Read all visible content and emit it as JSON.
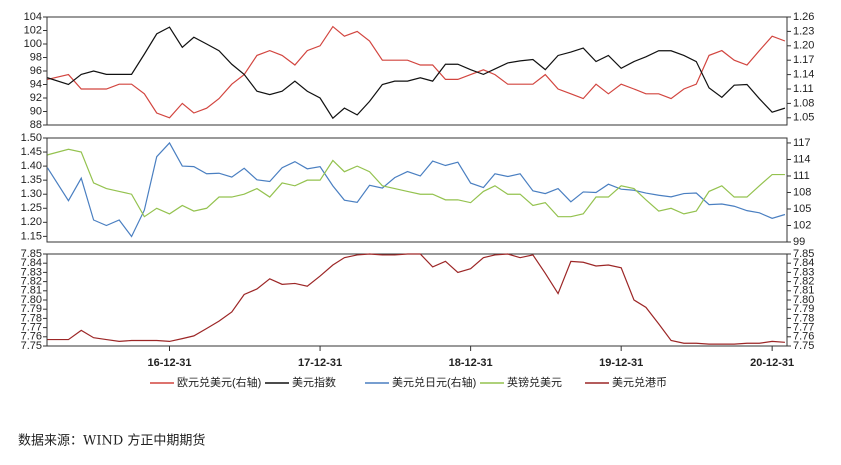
{
  "chart_data": [
    {
      "type": "line",
      "x": [
        "2016-03-10",
        "2016-04-30",
        "2016-05-31",
        "2016-06-30",
        "2016-07-31",
        "2016-08-31",
        "2016-09-30",
        "2016-10-31",
        "2016-11-30",
        "2016-12-31",
        "2017-01-31",
        "2017-02-28",
        "2017-03-31",
        "2017-04-30",
        "2017-05-31",
        "2017-06-30",
        "2017-07-31",
        "2017-08-31",
        "2017-09-30",
        "2017-10-31",
        "2017-11-30",
        "2017-12-31",
        "2018-01-31",
        "2018-02-28",
        "2018-03-31",
        "2018-04-30",
        "2018-05-31",
        "2018-06-30",
        "2018-07-31",
        "2018-08-31",
        "2018-09-30",
        "2018-10-31",
        "2018-11-30",
        "2018-12-31",
        "2019-01-31",
        "2019-02-28",
        "2019-03-31",
        "2019-04-30",
        "2019-05-31",
        "2019-06-30",
        "2019-07-31",
        "2019-08-31",
        "2019-09-30",
        "2019-10-31",
        "2019-11-30",
        "2019-12-31",
        "2020-01-31",
        "2020-02-29",
        "2020-03-31",
        "2020-04-30",
        "2020-05-31",
        "2020-06-30",
        "2020-07-31",
        "2020-08-31",
        "2020-09-30",
        "2020-10-31",
        "2020-11-30",
        "2020-12-31",
        "2021-01-31"
      ],
      "xlim": [
        "2016-03-09",
        "2021-02-05"
      ],
      "ylim": [
        88,
        104
      ],
      "yticks": [
        88,
        90,
        92,
        94,
        96,
        98,
        100,
        102,
        104
      ],
      "y2lim": [
        1.035,
        1.26
      ],
      "y2ticks": [
        1.05,
        1.08,
        1.11,
        1.14,
        1.17,
        {
          "value": 1.2,
          "label": "1.20"
        },
        1.23,
        1.26
      ],
      "series": [
        {
          "name": "欧元兑美元(右轴)",
          "color": "#d2453f",
          "axis": "y2",
          "values": [
            1.13,
            1.14,
            1.11,
            1.11,
            1.11,
            1.12,
            1.12,
            1.1,
            1.06,
            1.05,
            1.08,
            1.06,
            1.07,
            1.09,
            1.12,
            1.14,
            1.18,
            1.19,
            1.18,
            1.16,
            1.19,
            1.2,
            1.24,
            1.22,
            1.23,
            1.21,
            1.17,
            1.17,
            1.17,
            1.16,
            1.16,
            1.13,
            1.13,
            1.14,
            1.15,
            1.14,
            1.12,
            1.12,
            1.12,
            1.14,
            1.11,
            1.1,
            1.09,
            1.12,
            1.1,
            1.12,
            1.11,
            1.1,
            1.1,
            1.09,
            1.11,
            1.12,
            1.18,
            1.19,
            1.17,
            1.16,
            1.19,
            1.22,
            1.21
          ]
        },
        {
          "name": "美元指数",
          "color": "#111111",
          "values": [
            95,
            94,
            95.5,
            96,
            95.5,
            95.5,
            95.5,
            98.5,
            101.5,
            102.5,
            99.5,
            101,
            100,
            99,
            97,
            95.5,
            93,
            92.5,
            93,
            94.5,
            93,
            92,
            89,
            90.5,
            89.5,
            91.5,
            94,
            94.5,
            94.5,
            95,
            94.5,
            97,
            97,
            96.2,
            95.5,
            96.3,
            97.2,
            97.5,
            97.7,
            96.2,
            98.3,
            98.8,
            99.4,
            97.4,
            98.3,
            96.4,
            97.4,
            98.1,
            99,
            99,
            98.3,
            97.4,
            93.5,
            92.1,
            93.9,
            94,
            91.9,
            89.9,
            90.5
          ]
        }
      ]
    },
    {
      "type": "line",
      "x": [
        "2016-03-10",
        "2016-04-30",
        "2016-05-31",
        "2016-06-30",
        "2016-07-31",
        "2016-08-31",
        "2016-09-30",
        "2016-10-31",
        "2016-11-30",
        "2016-12-31",
        "2017-01-31",
        "2017-02-28",
        "2017-03-31",
        "2017-04-30",
        "2017-05-31",
        "2017-06-30",
        "2017-07-31",
        "2017-08-31",
        "2017-09-30",
        "2017-10-31",
        "2017-11-30",
        "2017-12-31",
        "2018-01-31",
        "2018-02-28",
        "2018-03-31",
        "2018-04-30",
        "2018-05-31",
        "2018-06-30",
        "2018-07-31",
        "2018-08-31",
        "2018-09-30",
        "2018-10-31",
        "2018-11-30",
        "2018-12-31",
        "2019-01-31",
        "2019-02-28",
        "2019-03-31",
        "2019-04-30",
        "2019-05-31",
        "2019-06-30",
        "2019-07-31",
        "2019-08-31",
        "2019-09-30",
        "2019-10-31",
        "2019-11-30",
        "2019-12-31",
        "2020-01-31",
        "2020-02-29",
        "2020-03-31",
        "2020-04-30",
        "2020-05-31",
        "2020-06-30",
        "2020-07-31",
        "2020-08-31",
        "2020-09-30",
        "2020-10-31",
        "2020-11-30",
        "2020-12-31",
        "2021-01-31"
      ],
      "xlim": [
        "2016-03-09",
        "2021-02-05"
      ],
      "ylim": [
        1.13,
        1.5
      ],
      "yticks": [
        1.15,
        {
          "value": 1.2,
          "label": "1.20"
        },
        1.25,
        {
          "value": 1.3,
          "label": "1.30"
        },
        1.35,
        {
          "value": 1.4,
          "label": "1.40"
        },
        1.45,
        {
          "value": 1.5,
          "label": "1.50"
        }
      ],
      "y2lim": [
        99,
        117.9
      ],
      "y2ticks": [
        99,
        102,
        105,
        108,
        111,
        114,
        117
      ],
      "series": [
        {
          "name": "美元兑日元(右轴)",
          "color": "#4a7fc1",
          "axis": "y2",
          "values": [
            112.5,
            106.5,
            110.6,
            103,
            102,
            103,
            100,
            104.8,
            114.5,
            117,
            112.8,
            112.7,
            111.4,
            111.5,
            110.8,
            112.4,
            110.3,
            110,
            112.5,
            113.6,
            112.3,
            112.7,
            109.2,
            106.6,
            106.2,
            109.3,
            108.8,
            110.7,
            111.8,
            111,
            113.7,
            112.9,
            113.5,
            109.7,
            108.9,
            111.4,
            110.9,
            111.4,
            108.3,
            107.8,
            108.7,
            106.3,
            108.1,
            108,
            109.5,
            108.6,
            108.4,
            107.9,
            107.5,
            107.2,
            107.8,
            107.9,
            105.8,
            105.9,
            105.5,
            104.7,
            104.3,
            103.3,
            104
          ]
        },
        {
          "name": "英镑兑美元",
          "color": "#94c24f",
          "values": [
            1.44,
            1.46,
            1.45,
            1.34,
            1.32,
            1.31,
            1.3,
            1.22,
            1.25,
            1.23,
            1.26,
            1.24,
            1.25,
            1.29,
            1.29,
            1.3,
            1.32,
            1.29,
            1.34,
            1.33,
            1.35,
            1.35,
            1.42,
            1.38,
            1.4,
            1.38,
            1.33,
            1.32,
            1.31,
            1.3,
            1.3,
            1.28,
            1.28,
            1.27,
            1.31,
            1.33,
            1.3,
            1.3,
            1.26,
            1.27,
            1.22,
            1.22,
            1.23,
            1.29,
            1.29,
            1.33,
            1.32,
            1.28,
            1.24,
            1.25,
            1.23,
            1.24,
            1.31,
            1.33,
            1.29,
            1.29,
            1.33,
            1.37,
            1.37
          ]
        }
      ]
    },
    {
      "type": "line",
      "x": [
        "2016-03-10",
        "2016-04-30",
        "2016-05-31",
        "2016-06-30",
        "2016-07-31",
        "2016-08-31",
        "2016-09-30",
        "2016-10-31",
        "2016-11-30",
        "2016-12-31",
        "2017-01-31",
        "2017-02-28",
        "2017-03-31",
        "2017-04-30",
        "2017-05-31",
        "2017-06-30",
        "2017-07-31",
        "2017-08-31",
        "2017-09-30",
        "2017-10-31",
        "2017-11-30",
        "2017-12-31",
        "2018-01-31",
        "2018-02-28",
        "2018-03-31",
        "2018-04-30",
        "2018-05-31",
        "2018-06-30",
        "2018-07-31",
        "2018-08-31",
        "2018-09-30",
        "2018-10-31",
        "2018-11-30",
        "2018-12-31",
        "2019-01-31",
        "2019-02-28",
        "2019-03-31",
        "2019-04-30",
        "2019-05-31",
        "2019-06-30",
        "2019-07-31",
        "2019-08-31",
        "2019-09-30",
        "2019-10-31",
        "2019-11-30",
        "2019-12-31",
        "2020-01-31",
        "2020-02-29",
        "2020-03-31",
        "2020-04-30",
        "2020-05-31",
        "2020-06-30",
        "2020-07-31",
        "2020-08-31",
        "2020-09-30",
        "2020-10-31",
        "2020-11-30",
        "2020-12-31",
        "2021-01-31"
      ],
      "xlim": [
        "2016-03-09",
        "2021-02-05"
      ],
      "xticks": [
        {
          "value": "2016-12-31",
          "label": "16-12-31"
        },
        {
          "value": "2017-12-31",
          "label": "17-12-31"
        },
        {
          "value": "2018-12-31",
          "label": "18-12-31"
        },
        {
          "value": "2019-12-31",
          "label": "19-12-31"
        },
        {
          "value": "2020-12-31",
          "label": "20-12-31"
        }
      ],
      "ylim": [
        7.75,
        7.85
      ],
      "yticks": [
        7.75,
        7.76,
        7.77,
        7.78,
        7.79,
        {
          "value": 7.8,
          "label": "7.80"
        },
        7.81,
        7.82,
        7.83,
        7.84,
        7.85
      ],
      "y2lim": [
        7.75,
        7.85
      ],
      "y2ticks": [
        7.75,
        7.76,
        7.77,
        7.78,
        7.79,
        {
          "value": 7.8,
          "label": "7.80"
        },
        7.81,
        7.82,
        7.83,
        7.84,
        7.85
      ],
      "series": [
        {
          "name": "美元兑港币",
          "color": "#9c2626",
          "values": [
            7.757,
            7.757,
            7.767,
            7.759,
            7.757,
            7.755,
            7.756,
            7.756,
            7.756,
            7.755,
            7.758,
            7.761,
            7.769,
            7.777,
            7.787,
            7.806,
            7.812,
            7.823,
            7.817,
            7.818,
            7.815,
            7.826,
            7.838,
            7.846,
            7.849,
            7.85,
            7.849,
            7.849,
            7.85,
            7.85,
            7.836,
            7.842,
            7.83,
            7.834,
            7.846,
            7.849,
            7.85,
            7.846,
            7.849,
            7.829,
            7.807,
            7.842,
            7.841,
            7.837,
            7.838,
            7.835,
            7.8,
            7.792,
            7.774,
            7.756,
            7.753,
            7.753,
            7.752,
            7.752,
            7.752,
            7.753,
            7.753,
            7.755,
            7.754
          ]
        }
      ]
    }
  ],
  "source": "数据来源：WIND  方正中期期货"
}
